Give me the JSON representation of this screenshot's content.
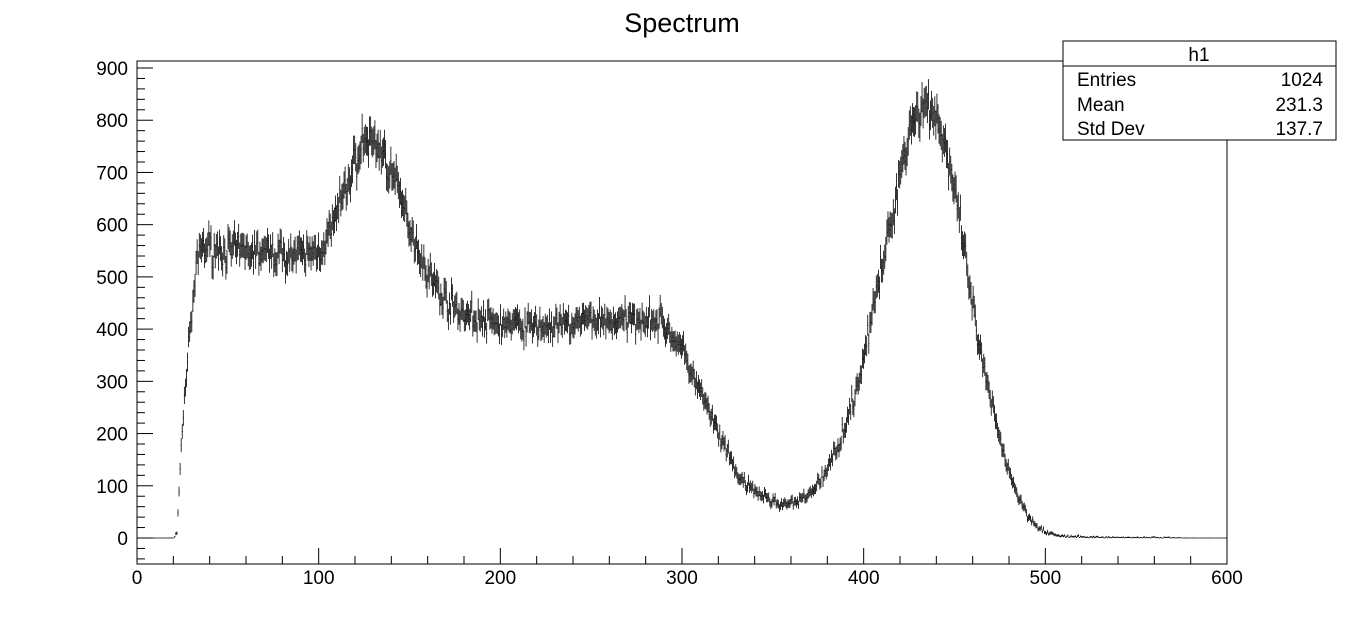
{
  "chart_data": {
    "type": "histogram",
    "title": "Spectrum",
    "xlabel": "",
    "ylabel": "",
    "xlim": [
      0,
      600
    ],
    "ylim": [
      -45,
      910
    ],
    "xticks": [
      0,
      100,
      200,
      300,
      400,
      500,
      600
    ],
    "yticks": [
      0,
      100,
      200,
      300,
      400,
      500,
      600,
      700,
      800,
      900
    ],
    "grid": false,
    "error_bars": true,
    "stats_box": {
      "title": "h1",
      "rows": [
        {
          "label": "Entries",
          "value": "1024"
        },
        {
          "label": "Mean",
          "value": "231.3"
        },
        {
          "label": "Std Dev",
          "value": "137.7"
        }
      ]
    },
    "series": [
      {
        "x": [
          0,
          10,
          20,
          22,
          24,
          26,
          28,
          30,
          32,
          34,
          36,
          40,
          50,
          60,
          70,
          80,
          90,
          100,
          105,
          110,
          115,
          120,
          125,
          130,
          135,
          140,
          145,
          150,
          155,
          160,
          165,
          170,
          180,
          190,
          200,
          210,
          220,
          230,
          240,
          250,
          260,
          270,
          280,
          290,
          295,
          300,
          305,
          310,
          315,
          320,
          325,
          330,
          335,
          340,
          345,
          350,
          355,
          360,
          365,
          370,
          375,
          380,
          385,
          390,
          395,
          400,
          405,
          410,
          415,
          420,
          425,
          430,
          435,
          440,
          445,
          450,
          455,
          460,
          465,
          470,
          475,
          480,
          485,
          490,
          495,
          500,
          505,
          510,
          520,
          540,
          560,
          580,
          600
        ],
        "y": [
          0,
          0,
          0,
          10,
          150,
          270,
          340,
          420,
          490,
          550,
          560,
          555,
          550,
          550,
          545,
          545,
          540,
          550,
          575,
          620,
          670,
          720,
          760,
          760,
          740,
          700,
          650,
          600,
          550,
          510,
          480,
          455,
          430,
          415,
          410,
          408,
          405,
          405,
          410,
          420,
          415,
          415,
          425,
          410,
          385,
          360,
          320,
          280,
          240,
          200,
          160,
          125,
          100,
          90,
          80,
          70,
          65,
          65,
          70,
          85,
          105,
          130,
          170,
          220,
          270,
          350,
          430,
          520,
          600,
          700,
          780,
          820,
          830,
          810,
          750,
          660,
          560,
          440,
          340,
          260,
          190,
          130,
          80,
          45,
          25,
          12,
          6,
          3,
          2,
          1,
          1,
          0,
          0
        ]
      }
    ]
  }
}
